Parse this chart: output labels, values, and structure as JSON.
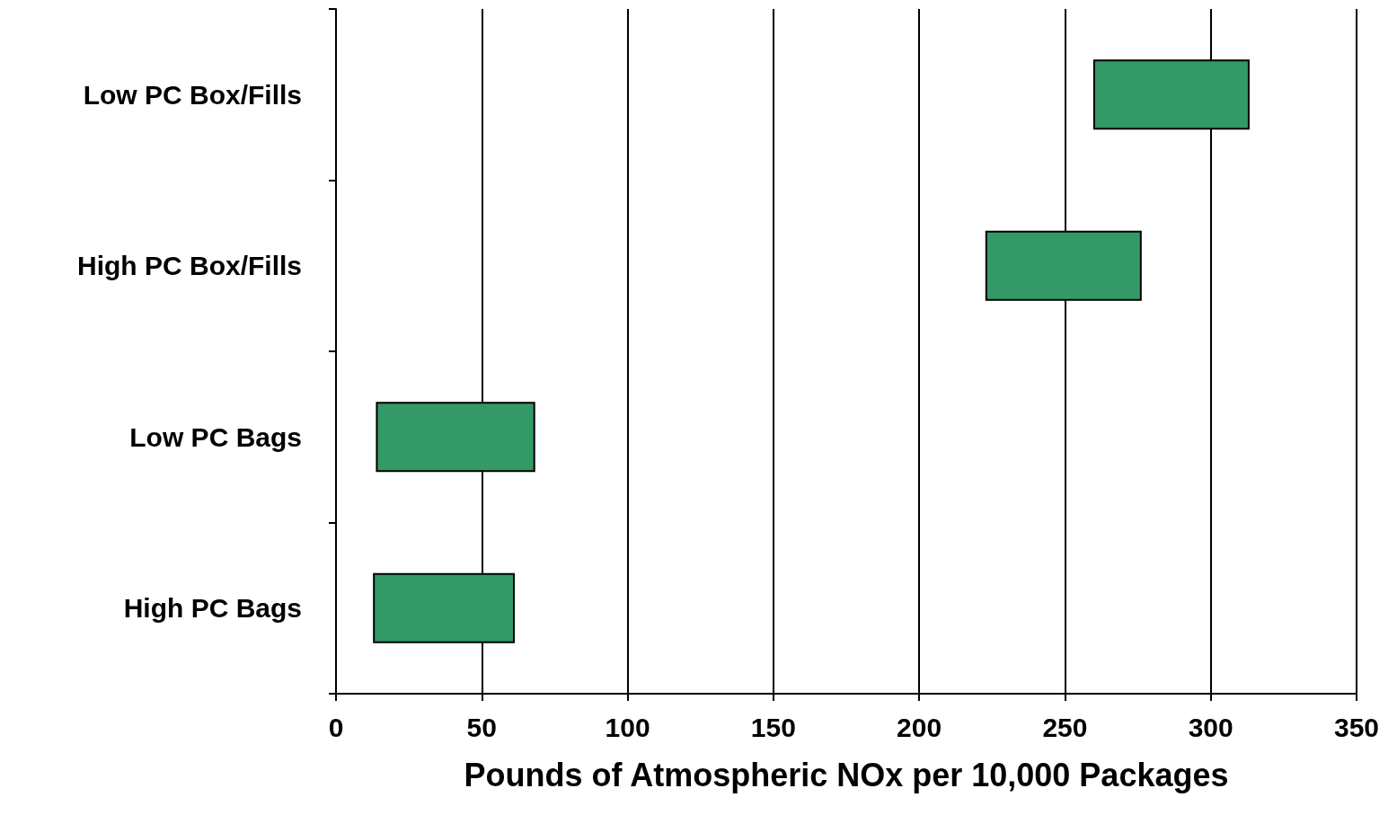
{
  "chart_data": {
    "type": "bar",
    "orientation": "horizontal",
    "xlabel": "Pounds of Atmospheric NOx per 10,000 Packages",
    "categories": [
      "Low PC Box/Fills",
      "High PC Box/Fills",
      "Low PC Bags",
      "High PC Bags"
    ],
    "base": [
      260,
      223,
      14,
      13
    ],
    "values": [
      53,
      53,
      54,
      48
    ],
    "color": "#339966",
    "xlim": [
      0,
      350
    ],
    "xticks": [
      0,
      50,
      100,
      150,
      200,
      250,
      300,
      350
    ],
    "grid": "x"
  }
}
